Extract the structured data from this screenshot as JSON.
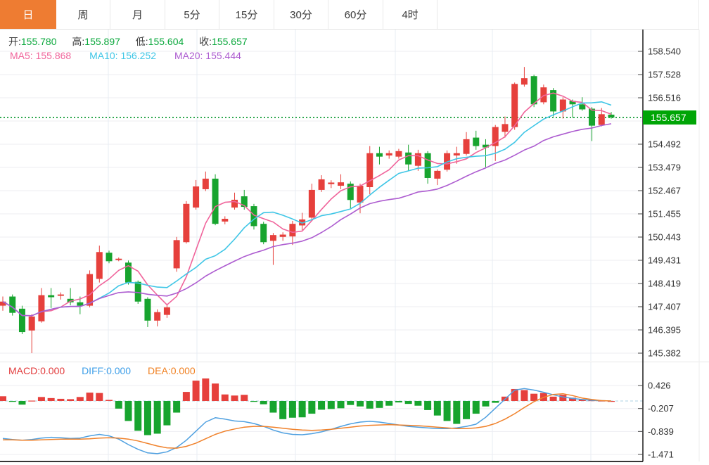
{
  "toolbar": {
    "tabs": [
      {
        "label": "日",
        "active": true
      },
      {
        "label": "周",
        "active": false
      },
      {
        "label": "月",
        "active": false
      },
      {
        "label": "5分",
        "active": false
      },
      {
        "label": "15分",
        "active": false
      },
      {
        "label": "30分",
        "active": false
      },
      {
        "label": "60分",
        "active": false
      },
      {
        "label": "4时",
        "active": false
      }
    ]
  },
  "ohlc_bar": {
    "open_label": "开:",
    "open": "155.780",
    "high_label": "高:",
    "high": "155.897",
    "low_label": "低:",
    "low": "155.604",
    "close_label": "收:",
    "close": "155.657"
  },
  "ma_bar": {
    "ma5_label": "MA5:",
    "ma5": "155.868",
    "ma10_label": "MA10:",
    "ma10": "156.252",
    "ma20_label": "MA20:",
    "ma20": "155.444"
  },
  "macd_bar": {
    "macd_label": "MACD:",
    "macd": "0.000",
    "diff_label": "DIFF:",
    "diff": "0.000",
    "dea_label": "DEA:",
    "dea": "0.000"
  },
  "price_label": "155.657",
  "colors": {
    "up": "#e6403c",
    "down": "#17a42e",
    "ma5": "#f0649b",
    "ma10": "#3fc6e6",
    "ma20": "#ad5cd0",
    "diff_line": "#4fa0e0",
    "dea_line": "#f0812a",
    "accent_tab": "#ee7c32",
    "price_line": "#2fa84f",
    "price_label_bg": "#00a506",
    "grid": "#ededf2",
    "vgrid": "#e7ecf3",
    "axis": "#1a1a1a",
    "tick_text": "#333333"
  },
  "chart_data": {
    "type": "candlestick+macd",
    "title": "",
    "price_axis": {
      "min": 145.382,
      "max": 158.54,
      "ticks": [
        "158.540",
        "157.528",
        "156.516",
        "154.492",
        "153.479",
        "152.467",
        "151.455",
        "150.443",
        "149.431",
        "148.419",
        "147.407",
        "146.395",
        "145.382"
      ],
      "hidden_tick": "155.504",
      "current_price": 155.657
    },
    "macd_axis": {
      "ticks": [
        "0.426",
        "-0.207",
        "-0.839",
        "-1.471"
      ],
      "tick_values": [
        0.426,
        -0.207,
        -0.839,
        -1.471
      ],
      "zero": 0
    },
    "ma_periods": [
      5,
      10,
      20
    ],
    "candles": [
      [
        147.45,
        147.85,
        147.23,
        147.63
      ],
      [
        147.85,
        147.94,
        147.02,
        147.14
      ],
      [
        147.32,
        147.45,
        146.21,
        146.3
      ],
      [
        146.37,
        147.08,
        145.38,
        146.98
      ],
      [
        146.77,
        148.22,
        146.71,
        147.91
      ],
      [
        147.91,
        148.22,
        147.35,
        147.82
      ],
      [
        147.88,
        148.03,
        147.72,
        147.94
      ],
      [
        147.75,
        148.22,
        147.47,
        147.6
      ],
      [
        147.6,
        147.85,
        147.08,
        147.45
      ],
      [
        147.45,
        148.99,
        147.38,
        148.83
      ],
      [
        148.62,
        150.07,
        148.46,
        149.79
      ],
      [
        149.76,
        149.85,
        149.3,
        149.39
      ],
      [
        149.44,
        149.55,
        149.39,
        149.5
      ],
      [
        149.33,
        149.42,
        148.37,
        148.46
      ],
      [
        148.49,
        148.55,
        147.53,
        147.63
      ],
      [
        147.75,
        147.82,
        146.52,
        146.8
      ],
      [
        146.8,
        147.29,
        146.55,
        147.17
      ],
      [
        147.05,
        147.53,
        146.92,
        147.38
      ],
      [
        149.08,
        150.45,
        148.93,
        150.31
      ],
      [
        150.22,
        152.01,
        150.16,
        151.89
      ],
      [
        151.73,
        152.93,
        151.64,
        152.65
      ],
      [
        152.53,
        153.3,
        152.45,
        152.99
      ],
      [
        152.99,
        153.18,
        150.96,
        151.02
      ],
      [
        151.12,
        151.35,
        151.0,
        151.24
      ],
      [
        151.73,
        152.38,
        151.64,
        152.07
      ],
      [
        152.22,
        152.5,
        151.64,
        151.76
      ],
      [
        151.79,
        151.89,
        150.77,
        150.92
      ],
      [
        151.02,
        151.11,
        150.13,
        150.22
      ],
      [
        150.28,
        150.62,
        149.23,
        150.53
      ],
      [
        150.45,
        150.65,
        150.28,
        150.55
      ],
      [
        150.47,
        151.15,
        150.1,
        151.02
      ],
      [
        150.95,
        151.5,
        150.75,
        151.21
      ],
      [
        151.29,
        152.77,
        151.15,
        152.5
      ],
      [
        152.5,
        153.14,
        152.41,
        152.96
      ],
      [
        152.75,
        152.92,
        152.58,
        152.82
      ],
      [
        152.68,
        153.18,
        152.53,
        152.83
      ],
      [
        152.77,
        152.87,
        151.7,
        152.06
      ],
      [
        151.95,
        152.77,
        151.48,
        152.68
      ],
      [
        152.62,
        154.41,
        152.31,
        154.1
      ],
      [
        154.1,
        154.38,
        153.61,
        153.95
      ],
      [
        154.0,
        154.22,
        153.86,
        154.1
      ],
      [
        153.95,
        154.29,
        153.86,
        154.19
      ],
      [
        154.13,
        154.47,
        153.33,
        153.61
      ],
      [
        153.55,
        154.25,
        153.33,
        154.1
      ],
      [
        154.1,
        154.19,
        152.77,
        153.02
      ],
      [
        152.99,
        153.39,
        152.71,
        153.33
      ],
      [
        153.38,
        154.22,
        153.3,
        154.1
      ],
      [
        154.0,
        154.38,
        153.64,
        154.1
      ],
      [
        154.07,
        155.02,
        154.0,
        154.71
      ],
      [
        154.78,
        155.08,
        154.25,
        154.41
      ],
      [
        154.47,
        154.71,
        153.49,
        154.35
      ],
      [
        154.41,
        155.33,
        153.76,
        155.24
      ],
      [
        155.03,
        155.7,
        154.78,
        155.37
      ],
      [
        155.24,
        157.18,
        155.12,
        157.12
      ],
      [
        157.09,
        157.86,
        157.0,
        157.37
      ],
      [
        157.46,
        157.52,
        156.11,
        156.23
      ],
      [
        156.32,
        157.09,
        156.23,
        156.97
      ],
      [
        156.85,
        156.94,
        155.7,
        155.92
      ],
      [
        155.92,
        156.54,
        155.61,
        156.44
      ],
      [
        156.38,
        156.44,
        155.64,
        156.23
      ],
      [
        156.23,
        156.54,
        155.95,
        156.01
      ],
      [
        156.04,
        156.11,
        154.63,
        155.3
      ],
      [
        155.33,
        156.07,
        155.27,
        155.8
      ],
      [
        155.78,
        155.897,
        155.604,
        155.657
      ]
    ],
    "macd_hist": [
      0.13,
      -0.02,
      -0.1,
      0.01,
      0.11,
      0.08,
      0.06,
      0.05,
      0.11,
      0.23,
      0.22,
      0.03,
      -0.21,
      -0.55,
      -0.82,
      -0.94,
      -0.9,
      -0.67,
      -0.32,
      0.25,
      0.56,
      0.62,
      0.48,
      0.18,
      0.15,
      0.17,
      -0.02,
      -0.09,
      -0.32,
      -0.5,
      -0.46,
      -0.45,
      -0.35,
      -0.24,
      -0.22,
      -0.2,
      -0.11,
      -0.15,
      -0.21,
      -0.19,
      -0.13,
      -0.04,
      -0.08,
      -0.13,
      -0.25,
      -0.4,
      -0.55,
      -0.63,
      -0.5,
      -0.35,
      -0.15,
      -0.05,
      0.12,
      0.33,
      0.3,
      0.2,
      0.22,
      0.12,
      0.17,
      0.09,
      0.05,
      0.02,
      0.01,
      0.0
    ],
    "diff_line": [
      -1.03,
      -1.06,
      -1.08,
      -1.06,
      -1.02,
      -1.0,
      -1.01,
      -1.03,
      -1.02,
      -0.96,
      -0.92,
      -0.96,
      -1.05,
      -1.2,
      -1.33,
      -1.43,
      -1.45,
      -1.4,
      -1.28,
      -1.08,
      -0.83,
      -0.58,
      -0.46,
      -0.5,
      -0.55,
      -0.57,
      -0.62,
      -0.7,
      -0.8,
      -0.88,
      -0.92,
      -0.93,
      -0.9,
      -0.85,
      -0.78,
      -0.7,
      -0.63,
      -0.58,
      -0.56,
      -0.58,
      -0.62,
      -0.66,
      -0.7,
      -0.72,
      -0.74,
      -0.76,
      -0.76,
      -0.74,
      -0.7,
      -0.64,
      -0.45,
      -0.2,
      0.05,
      0.3,
      0.34,
      0.3,
      0.24,
      0.17,
      0.11,
      0.07,
      0.04,
      0.02,
      0.01,
      0.0
    ],
    "dea_line": [
      -1.07,
      -1.07,
      -1.08,
      -1.08,
      -1.07,
      -1.06,
      -1.05,
      -1.05,
      -1.05,
      -1.04,
      -1.02,
      -1.01,
      -1.02,
      -1.05,
      -1.1,
      -1.17,
      -1.24,
      -1.29,
      -1.3,
      -1.25,
      -1.16,
      -1.04,
      -0.92,
      -0.83,
      -0.77,
      -0.72,
      -0.7,
      -0.7,
      -0.72,
      -0.75,
      -0.78,
      -0.8,
      -0.81,
      -0.8,
      -0.78,
      -0.75,
      -0.72,
      -0.69,
      -0.67,
      -0.66,
      -0.65,
      -0.66,
      -0.67,
      -0.68,
      -0.7,
      -0.72,
      -0.74,
      -0.76,
      -0.76,
      -0.74,
      -0.7,
      -0.62,
      -0.5,
      -0.35,
      -0.18,
      -0.02,
      0.1,
      0.18,
      0.2,
      0.15,
      0.08,
      0.04,
      0.01,
      0.0
    ]
  }
}
